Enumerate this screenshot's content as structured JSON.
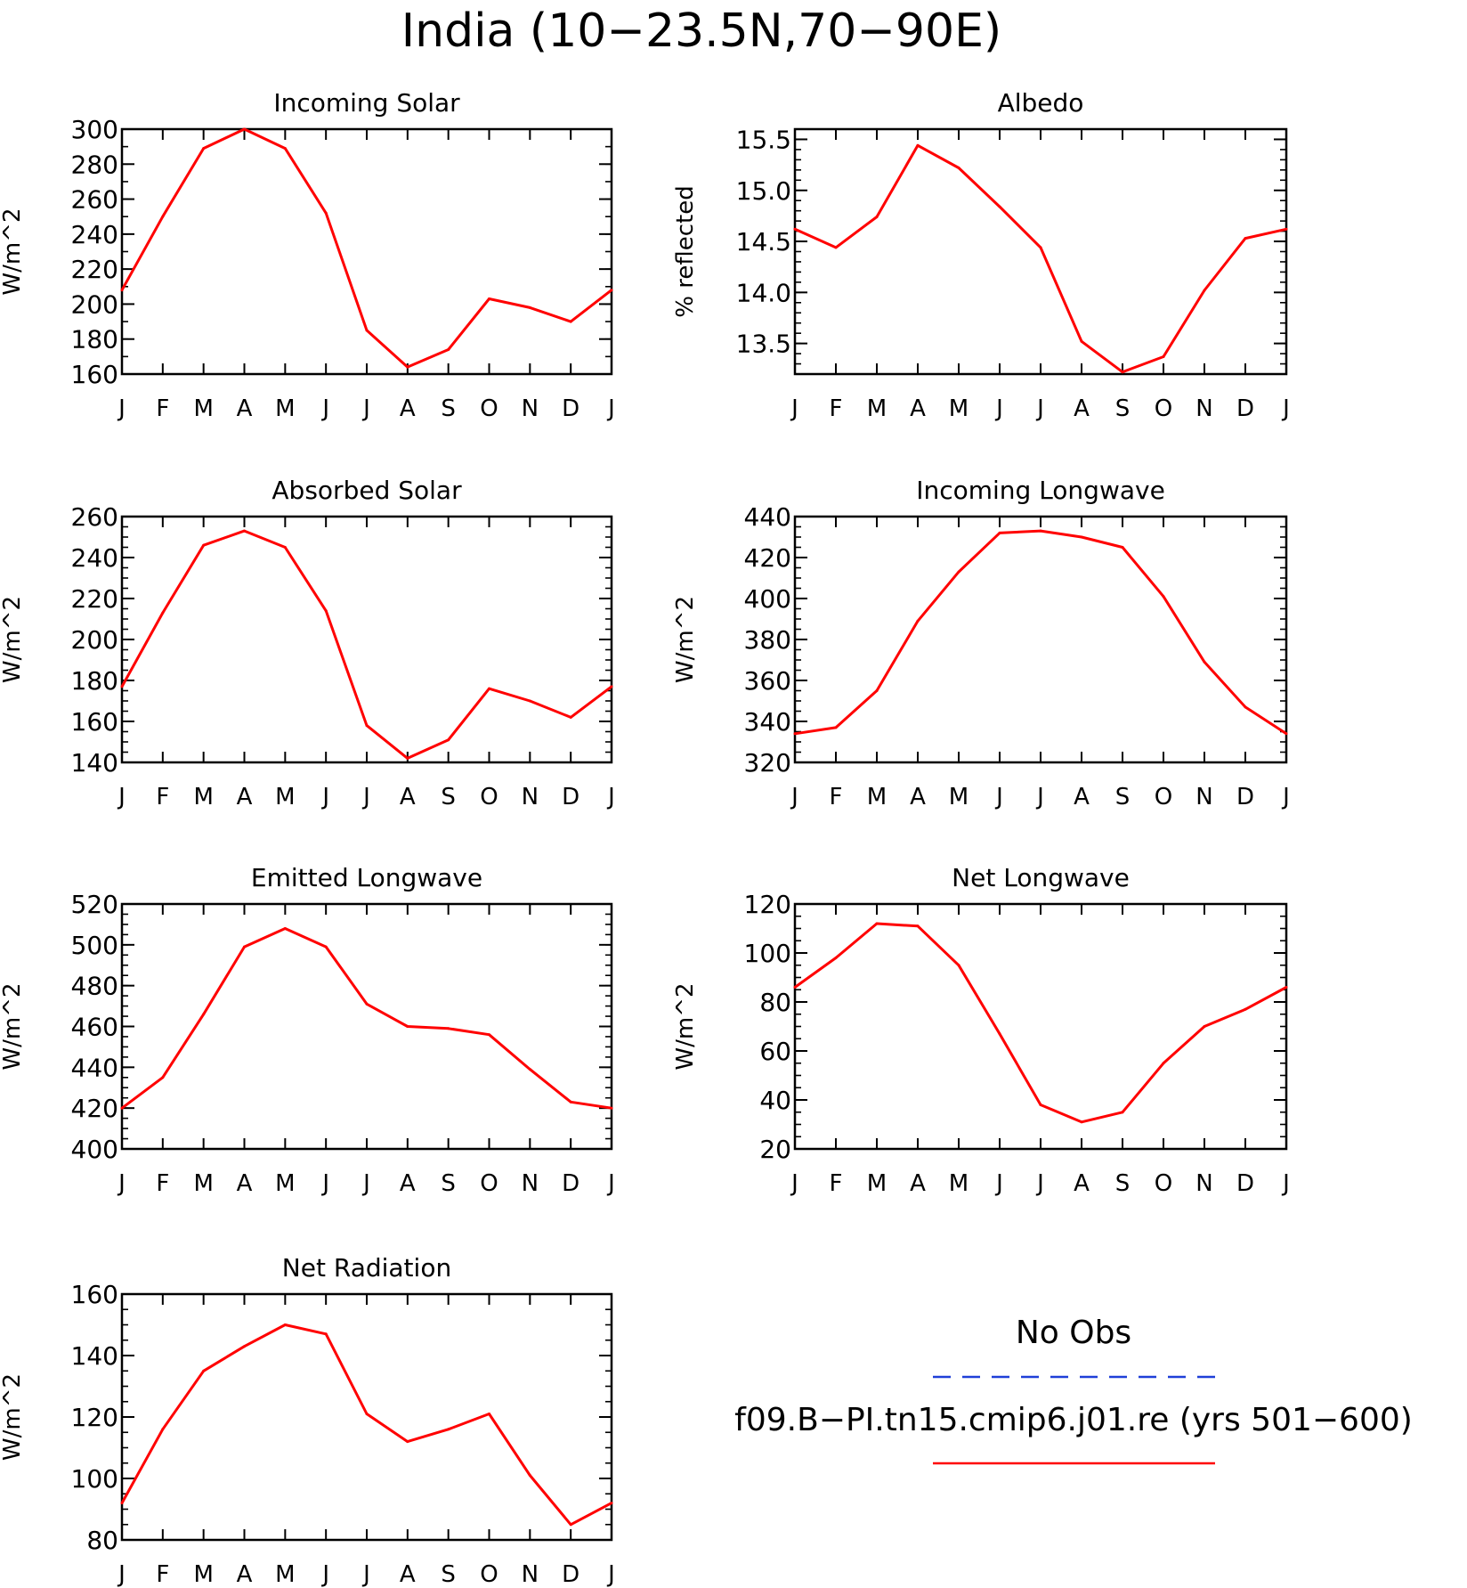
{
  "title": "India (10−23.5N,70−90E)",
  "months": [
    "J",
    "F",
    "M",
    "A",
    "M",
    "J",
    "J",
    "A",
    "S",
    "O",
    "N",
    "D",
    "J"
  ],
  "legend": {
    "obs_label": "No Obs",
    "obs_color": "#1f3fd8",
    "model_label": "f09.B−PI.tn15.cmip6.j01.re (yrs 501−600)",
    "model_color": "#ff0000"
  },
  "chart_data": [
    {
      "type": "line",
      "title": "Incoming Solar",
      "ylabel": "W/m^2",
      "ylim": [
        160,
        300
      ],
      "yticks": [
        160,
        180,
        200,
        220,
        240,
        260,
        280,
        300
      ],
      "ytick_labels": [
        "160",
        "180",
        "200",
        "220",
        "240",
        "260",
        "280",
        "300"
      ],
      "minor_step": 10,
      "series": [
        {
          "values": [
            208,
            250,
            289,
            300,
            289,
            252,
            185,
            164,
            174,
            203,
            198,
            190,
            208
          ]
        }
      ]
    },
    {
      "type": "line",
      "title": "Albedo",
      "ylabel": "% reflected",
      "ylim": [
        13.2,
        15.6
      ],
      "yticks": [
        13.5,
        14.0,
        14.5,
        15.0,
        15.5
      ],
      "ytick_labels": [
        "13.5",
        "14.0",
        "14.5",
        "15.0",
        "15.5"
      ],
      "minor_step": 0.1,
      "series": [
        {
          "values": [
            14.62,
            14.44,
            14.74,
            15.44,
            15.22,
            14.84,
            14.44,
            13.52,
            13.22,
            13.37,
            14.02,
            14.53,
            14.62
          ]
        }
      ]
    },
    {
      "type": "line",
      "title": "Absorbed Solar",
      "ylabel": "W/m^2",
      "ylim": [
        140,
        260
      ],
      "yticks": [
        140,
        160,
        180,
        200,
        220,
        240,
        260
      ],
      "ytick_labels": [
        "140",
        "160",
        "180",
        "200",
        "220",
        "240",
        "260"
      ],
      "minor_step": 5,
      "series": [
        {
          "values": [
            177,
            213,
            246,
            253,
            245,
            214,
            158,
            142,
            151,
            176,
            170,
            162,
            177
          ]
        }
      ]
    },
    {
      "type": "line",
      "title": "Incoming Longwave",
      "ylabel": "W/m^2",
      "ylim": [
        320,
        440
      ],
      "yticks": [
        320,
        340,
        360,
        380,
        400,
        420,
        440
      ],
      "ytick_labels": [
        "320",
        "340",
        "360",
        "380",
        "400",
        "420",
        "440"
      ],
      "minor_step": 5,
      "series": [
        {
          "values": [
            334,
            337,
            355,
            389,
            413,
            432,
            433,
            430,
            425,
            401,
            369,
            347,
            334
          ]
        }
      ]
    },
    {
      "type": "line",
      "title": "Emitted Longwave",
      "ylabel": "W/m^2",
      "ylim": [
        400,
        520
      ],
      "yticks": [
        400,
        420,
        440,
        460,
        480,
        500,
        520
      ],
      "ytick_labels": [
        "400",
        "420",
        "440",
        "460",
        "480",
        "500",
        "520"
      ],
      "minor_step": 5,
      "series": [
        {
          "values": [
            420,
            435,
            466,
            499,
            508,
            499,
            471,
            460,
            459,
            456,
            439,
            423,
            420
          ]
        }
      ]
    },
    {
      "type": "line",
      "title": "Net Longwave",
      "ylabel": "W/m^2",
      "ylim": [
        20,
        120
      ],
      "yticks": [
        20,
        40,
        60,
        80,
        100,
        120
      ],
      "ytick_labels": [
        "20",
        "40",
        "60",
        "80",
        "100",
        "120"
      ],
      "minor_step": 5,
      "series": [
        {
          "values": [
            86,
            98,
            112,
            111,
            95,
            67,
            38,
            31,
            35,
            55,
            70,
            77,
            86
          ]
        }
      ]
    },
    {
      "type": "line",
      "title": "Net Radiation",
      "ylabel": "W/m^2",
      "ylim": [
        80,
        160
      ],
      "yticks": [
        80,
        100,
        120,
        140,
        160
      ],
      "ytick_labels": [
        "80",
        "100",
        "120",
        "140",
        "160"
      ],
      "minor_step": 5,
      "series": [
        {
          "values": [
            92,
            116,
            135,
            143,
            150,
            147,
            121,
            112,
            116,
            121,
            101,
            85,
            92
          ]
        }
      ]
    }
  ]
}
